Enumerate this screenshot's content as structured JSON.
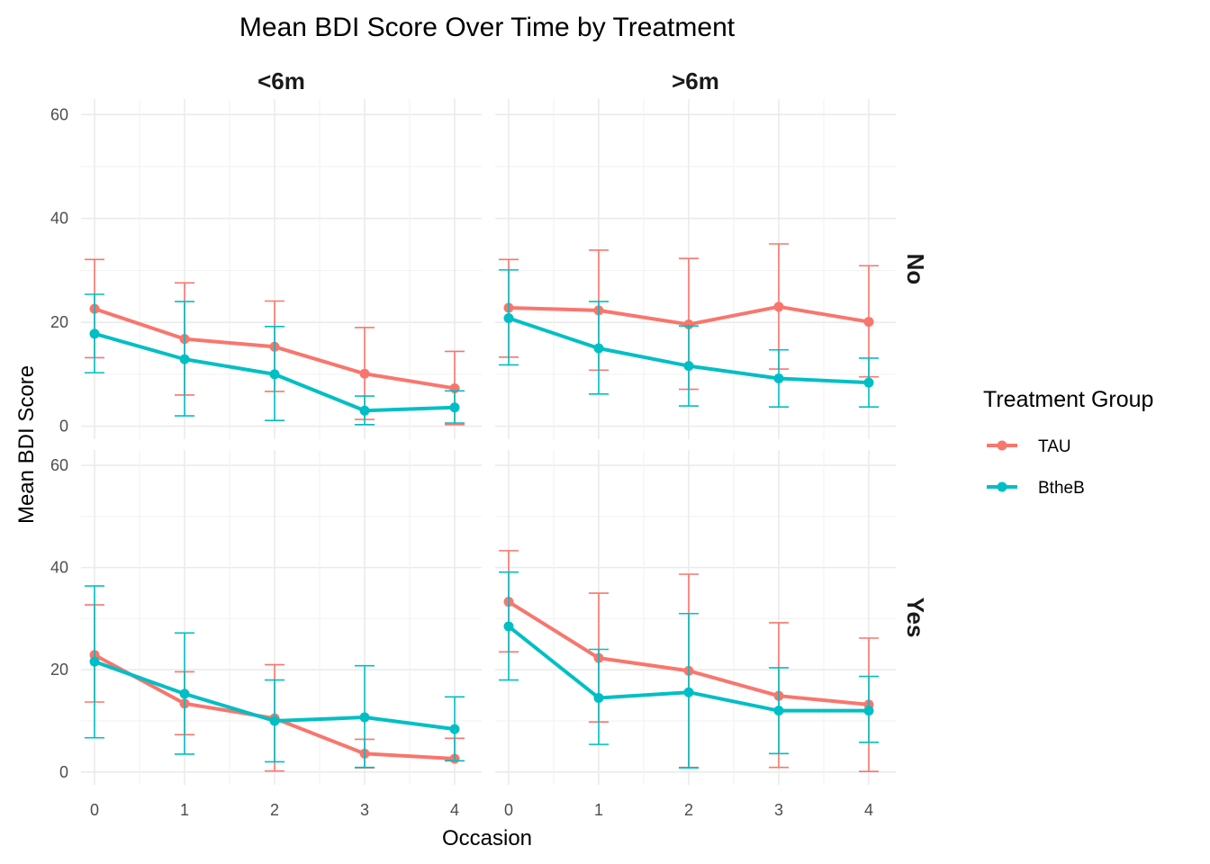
{
  "chart_data": {
    "type": "line",
    "title": "Mean BDI Score Over Time by Treatment",
    "xlabel": "Occasion",
    "ylabel": "Mean BDI Score",
    "x_ticks": [
      0,
      1,
      2,
      3,
      4
    ],
    "y_ticks": [
      0,
      20,
      40,
      60
    ],
    "xlim": [
      -0.15,
      4.3
    ],
    "ylim": [
      -2.5,
      63
    ],
    "grid": true,
    "legend": {
      "title": "Treatment Group",
      "placement": "right",
      "entries": [
        "TAU",
        "BtheB"
      ]
    },
    "colors": {
      "TAU": "#F8766D",
      "BtheB": "#00BFC4"
    },
    "col_facets": [
      "<6m",
      ">6m"
    ],
    "row_facets": [
      "No",
      "Yes"
    ],
    "panels": [
      {
        "col": "<6m",
        "row": "No",
        "series": [
          {
            "name": "TAU",
            "x": [
              0,
              1,
              2,
              3,
              4
            ],
            "mean": [
              22.6,
              16.8,
              15.3,
              10.1,
              7.3
            ],
            "lower": [
              13.2,
              6.0,
              6.7,
              1.3,
              0.3
            ],
            "upper": [
              32.1,
              27.6,
              24.1,
              19.0,
              14.4
            ]
          },
          {
            "name": "BtheB",
            "x": [
              0,
              1,
              2,
              3,
              4
            ],
            "mean": [
              17.8,
              12.9,
              10.0,
              3.0,
              3.6
            ],
            "lower": [
              10.3,
              2.0,
              1.1,
              0.3,
              0.6
            ],
            "upper": [
              25.4,
              24.0,
              19.2,
              5.8,
              6.8
            ]
          }
        ]
      },
      {
        "col": ">6m",
        "row": "No",
        "series": [
          {
            "name": "TAU",
            "x": [
              0,
              1,
              2,
              3,
              4
            ],
            "mean": [
              22.8,
              22.3,
              19.6,
              23.0,
              20.1
            ],
            "lower": [
              13.3,
              10.8,
              7.1,
              11.0,
              9.5
            ],
            "upper": [
              32.1,
              33.9,
              32.3,
              35.1,
              30.9
            ]
          },
          {
            "name": "BtheB",
            "x": [
              0,
              1,
              2,
              3,
              4
            ],
            "mean": [
              20.8,
              15.0,
              11.6,
              9.2,
              8.4
            ],
            "lower": [
              11.8,
              6.2,
              3.9,
              3.7,
              3.7
            ],
            "upper": [
              30.1,
              24.0,
              19.3,
              14.7,
              13.1
            ]
          }
        ]
      },
      {
        "col": "<6m",
        "row": "Yes",
        "series": [
          {
            "name": "TAU",
            "x": [
              0,
              1,
              2,
              3,
              4
            ],
            "mean": [
              22.9,
              13.4,
              10.5,
              3.6,
              2.6
            ],
            "lower": [
              13.7,
              7.3,
              0.2,
              0.8,
              2.2
            ],
            "upper": [
              32.7,
              19.6,
              21.0,
              6.4,
              6.6
            ]
          },
          {
            "name": "BtheB",
            "x": [
              0,
              1,
              2,
              3,
              4
            ],
            "mean": [
              21.6,
              15.3,
              10.0,
              10.7,
              8.4
            ],
            "lower": [
              6.7,
              3.5,
              2.0,
              0.9,
              2.2
            ],
            "upper": [
              36.4,
              27.2,
              18.0,
              20.8,
              14.7
            ]
          }
        ]
      },
      {
        "col": ">6m",
        "row": "Yes",
        "series": [
          {
            "name": "TAU",
            "x": [
              0,
              1,
              2,
              3,
              4
            ],
            "mean": [
              33.3,
              22.3,
              19.8,
              14.9,
              13.2
            ],
            "lower": [
              23.5,
              9.8,
              0.9,
              0.9,
              0.1
            ],
            "upper": [
              43.3,
              35.0,
              38.7,
              29.2,
              26.2
            ]
          },
          {
            "name": "BtheB",
            "x": [
              0,
              1,
              2,
              3,
              4
            ],
            "mean": [
              28.5,
              14.5,
              15.6,
              12.0,
              12.0
            ],
            "lower": [
              18.0,
              5.4,
              0.8,
              3.6,
              5.8
            ],
            "upper": [
              39.1,
              24.0,
              31.0,
              20.4,
              18.7
            ]
          }
        ]
      }
    ]
  }
}
